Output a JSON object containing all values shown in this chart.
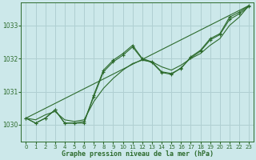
{
  "background_color": "#cce8ea",
  "grid_color": "#b0cfd2",
  "line_color": "#2d6b2d",
  "title": "Graphe pression niveau de la mer (hPa)",
  "xlim": [
    -0.5,
    23.5
  ],
  "ylim": [
    1029.5,
    1033.7
  ],
  "yticks": [
    1030,
    1031,
    1032,
    1033
  ],
  "xticks": [
    0,
    1,
    2,
    3,
    4,
    5,
    6,
    7,
    8,
    9,
    10,
    11,
    12,
    13,
    14,
    15,
    16,
    17,
    18,
    19,
    20,
    21,
    22,
    23
  ],
  "trend_line": {
    "x": [
      0,
      23
    ],
    "y": [
      1030.2,
      1033.6
    ]
  },
  "smooth_line": {
    "x": [
      0,
      1,
      2,
      3,
      4,
      5,
      6,
      7,
      8,
      9,
      10,
      11,
      12,
      13,
      14,
      15,
      16,
      17,
      18,
      19,
      20,
      21,
      22,
      23
    ],
    "y": [
      1030.2,
      1030.15,
      1030.3,
      1030.4,
      1030.15,
      1030.1,
      1030.15,
      1030.7,
      1031.1,
      1031.4,
      1031.65,
      1031.85,
      1031.95,
      1031.9,
      1031.75,
      1031.65,
      1031.8,
      1032.0,
      1032.15,
      1032.4,
      1032.6,
      1033.0,
      1033.25,
      1033.6
    ]
  },
  "line1": {
    "x": [
      0,
      1,
      2,
      3,
      4,
      5,
      6,
      7,
      8,
      9,
      10,
      11,
      12,
      13,
      14,
      15,
      16,
      17,
      18,
      19,
      20,
      21,
      22,
      23
    ],
    "y": [
      1030.2,
      1030.05,
      1030.2,
      1030.45,
      1030.05,
      1030.05,
      1030.05,
      1030.9,
      1031.65,
      1031.95,
      1032.15,
      1032.4,
      1032.0,
      1031.9,
      1031.6,
      1031.55,
      1031.7,
      1032.05,
      1032.25,
      1032.6,
      1032.75,
      1033.25,
      1033.4,
      1033.6
    ]
  },
  "line2": {
    "x": [
      0,
      1,
      2,
      3,
      4,
      5,
      6,
      7,
      8,
      9,
      10,
      11,
      12,
      13,
      14,
      15,
      16,
      17,
      18,
      19,
      20,
      21,
      22,
      23
    ],
    "y": [
      1030.2,
      1030.05,
      1030.2,
      1030.45,
      1030.05,
      1030.05,
      1030.1,
      1030.85,
      1031.6,
      1031.9,
      1032.1,
      1032.35,
      1031.98,
      1031.88,
      1031.58,
      1031.52,
      1031.72,
      1032.02,
      1032.22,
      1032.56,
      1032.72,
      1033.18,
      1033.35,
      1033.57
    ]
  }
}
